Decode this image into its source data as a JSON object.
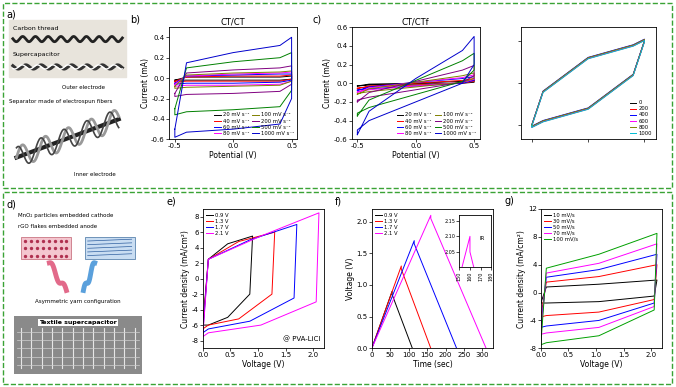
{
  "chart_data": [
    {
      "type": "line",
      "panel_label": "b)",
      "title": "CT/CT",
      "x_label": "Potential (V)",
      "y_label": "Current (mA)",
      "x": [
        -0.5,
        -0.4,
        0.0,
        0.4,
        0.5,
        0.5,
        0.4,
        0.0,
        -0.4,
        -0.5,
        -0.5
      ],
      "xlim": [
        -0.55,
        0.55
      ],
      "ylim": [
        -0.6,
        0.5
      ],
      "xticks": [
        -0.5,
        0.0,
        0.5
      ],
      "yticks": [
        -0.6,
        -0.4,
        -0.2,
        0.0,
        0.2,
        0.4
      ],
      "legend": "lower right",
      "series": [
        {
          "name": "20 mV s⁻¹",
          "color": "#000000",
          "values": [
            -0.02,
            0.01,
            0.01,
            0.01,
            0.02,
            -0.01,
            -0.02,
            -0.02,
            -0.02,
            -0.02,
            -0.02
          ]
        },
        {
          "name": "40 mV s⁻¹",
          "color": "#ff0000",
          "values": [
            -0.03,
            0.01,
            0.02,
            0.02,
            0.03,
            -0.01,
            -0.03,
            -0.03,
            -0.03,
            -0.04,
            -0.03
          ]
        },
        {
          "name": "60 mV s⁻¹",
          "color": "#0000ff",
          "values": [
            -0.05,
            0.02,
            0.03,
            0.04,
            0.04,
            -0.02,
            -0.04,
            -0.05,
            -0.05,
            -0.06,
            -0.05
          ]
        },
        {
          "name": "80 mV s⁻¹",
          "color": "#ff00ff",
          "values": [
            -0.06,
            0.02,
            0.04,
            0.05,
            0.06,
            -0.03,
            -0.06,
            -0.07,
            -0.07,
            -0.08,
            -0.06
          ]
        },
        {
          "name": "100 mV s⁻¹",
          "color": "#808000",
          "values": [
            -0.08,
            0.03,
            0.05,
            0.06,
            0.07,
            -0.03,
            -0.07,
            -0.08,
            -0.09,
            -0.1,
            -0.08
          ]
        },
        {
          "name": "200 mV s⁻¹",
          "color": "#800080",
          "values": [
            -0.15,
            0.05,
            0.08,
            0.1,
            0.12,
            -0.06,
            -0.13,
            -0.15,
            -0.16,
            -0.18,
            -0.15
          ]
        },
        {
          "name": "500 mV s⁻¹",
          "color": "#008000",
          "values": [
            -0.3,
            0.1,
            0.16,
            0.2,
            0.25,
            -0.12,
            -0.28,
            -0.31,
            -0.33,
            -0.36,
            -0.3
          ]
        },
        {
          "name": "1000 mV s⁻¹",
          "color": "#0000cc",
          "values": [
            -0.5,
            0.15,
            0.25,
            0.32,
            0.4,
            -0.2,
            -0.45,
            -0.5,
            -0.53,
            -0.58,
            -0.5
          ]
        }
      ]
    },
    {
      "type": "line",
      "panel_label": "c)",
      "title": "CT/CTf",
      "x_label": "Potential (V)",
      "y_label": "Current (mA)",
      "x": [
        -0.5,
        -0.4,
        0.0,
        0.4,
        0.5,
        0.5,
        0.4,
        0.0,
        -0.4,
        -0.5,
        -0.5
      ],
      "xlim": [
        -0.55,
        0.55
      ],
      "ylim": [
        -0.6,
        0.6
      ],
      "xticks": [
        -0.5,
        0.0,
        0.5
      ],
      "yticks": [
        -0.6,
        -0.4,
        -0.2,
        0.0,
        0.2,
        0.4,
        0.6
      ],
      "legend": "lower right",
      "series": [
        {
          "name": "20 mV s⁻¹",
          "color": "#000000",
          "values": [
            -0.03,
            -0.01,
            0.0,
            0.02,
            0.03,
            0.01,
            0.0,
            -0.01,
            -0.02,
            -0.03,
            -0.03
          ]
        },
        {
          "name": "40 mV s⁻¹",
          "color": "#ff0000",
          "values": [
            -0.06,
            -0.03,
            0.0,
            0.03,
            0.05,
            0.02,
            0.0,
            -0.02,
            -0.04,
            -0.05,
            -0.06
          ]
        },
        {
          "name": "60 mV s⁻¹",
          "color": "#0000ff",
          "values": [
            -0.08,
            -0.04,
            0.01,
            0.05,
            0.07,
            0.03,
            0.0,
            -0.03,
            -0.06,
            -0.07,
            -0.08
          ]
        },
        {
          "name": "80 mV s⁻¹",
          "color": "#ff00ff",
          "values": [
            -0.1,
            -0.05,
            0.01,
            0.06,
            0.09,
            0.04,
            0.01,
            -0.03,
            -0.07,
            -0.09,
            -0.1
          ]
        },
        {
          "name": "100 mV s⁻¹",
          "color": "#808000",
          "values": [
            -0.12,
            -0.06,
            0.01,
            0.08,
            0.11,
            0.05,
            0.01,
            -0.04,
            -0.09,
            -0.11,
            -0.12
          ]
        },
        {
          "name": "200 mV s⁻¹",
          "color": "#800080",
          "values": [
            -0.2,
            -0.1,
            0.02,
            0.14,
            0.19,
            0.08,
            0.01,
            -0.07,
            -0.15,
            -0.18,
            -0.2
          ]
        },
        {
          "name": "500 mV s⁻¹",
          "color": "#008000",
          "values": [
            -0.35,
            -0.18,
            0.03,
            0.24,
            0.32,
            0.14,
            0.02,
            -0.12,
            -0.26,
            -0.32,
            -0.35
          ]
        },
        {
          "name": "1000 mV s⁻¹",
          "color": "#0000cc",
          "values": [
            -0.55,
            -0.3,
            0.05,
            0.35,
            0.5,
            0.2,
            0.0,
            -0.2,
            -0.4,
            -0.5,
            -0.55
          ]
        }
      ]
    },
    {
      "type": "line",
      "tick_labels": false,
      "x": [
        -0.5,
        -0.4,
        0.0,
        0.4,
        0.5,
        0.5,
        0.4,
        0.0,
        -0.4,
        -0.5,
        -0.5
      ],
      "xlim": [
        -0.6,
        0.6
      ],
      "ylim": [
        -2.0,
        2.0
      ],
      "xticks": [
        -0.5,
        0.0,
        0.5
      ],
      "yticks": [
        -1.5,
        0.0,
        1.5
      ],
      "legend": "lower right",
      "series": [
        {
          "name": "0",
          "color": "#000000",
          "values": [
            -1.5,
            -0.3,
            0.9,
            1.35,
            1.55,
            1.5,
            0.3,
            -0.9,
            -1.35,
            -1.55,
            -1.5
          ]
        },
        {
          "name": "200",
          "color": "#ff0000",
          "values": [
            -1.52,
            -0.32,
            0.88,
            1.33,
            1.53,
            1.48,
            0.28,
            -0.92,
            -1.37,
            -1.57,
            -1.52
          ]
        },
        {
          "name": "400",
          "color": "#0000ff",
          "values": [
            -1.48,
            -0.28,
            0.92,
            1.37,
            1.57,
            1.52,
            0.32,
            -0.88,
            -1.33,
            -1.53,
            -1.48
          ]
        },
        {
          "name": "600",
          "color": "#ff00ff",
          "values": [
            -1.51,
            -0.31,
            0.89,
            1.34,
            1.54,
            1.49,
            0.29,
            -0.91,
            -1.36,
            -1.56,
            -1.51
          ]
        },
        {
          "name": "800",
          "color": "#808000",
          "values": [
            -1.49,
            -0.29,
            0.91,
            1.36,
            1.56,
            1.51,
            0.31,
            -0.89,
            -1.34,
            -1.54,
            -1.49
          ]
        },
        {
          "name": "1000",
          "color": "#00bcd4",
          "values": [
            -1.53,
            -0.33,
            0.87,
            1.32,
            1.52,
            1.47,
            0.27,
            -0.93,
            -1.38,
            -1.58,
            -1.53
          ]
        }
      ]
    },
    {
      "type": "line",
      "panel_label": "e)",
      "x_label": "Voltage (V)",
      "y_label": "Current density (mA/cm²)",
      "xlim": [
        0.0,
        2.2
      ],
      "ylim": [
        -9,
        9
      ],
      "xticks": [
        0.0,
        0.5,
        1.0,
        1.5,
        2.0
      ],
      "yticks": [
        -8,
        -6,
        -4,
        -2,
        0,
        2,
        4,
        6,
        8
      ],
      "legend": "upper left",
      "annotations": [
        "@ PVA-LiCl"
      ],
      "series": [
        {
          "name": "0.9 V",
          "color": "#000000",
          "x": [
            0.0,
            0.1,
            0.45,
            0.9,
            0.85,
            0.45,
            0.1,
            0.0
          ],
          "values": [
            -6.0,
            2.5,
            4.5,
            5.5,
            -2.0,
            -5.0,
            -6.0,
            -6.0
          ]
        },
        {
          "name": "1.3 V",
          "color": "#ff0000",
          "x": [
            0.0,
            0.1,
            0.65,
            1.3,
            1.25,
            0.65,
            0.1,
            0.0
          ],
          "values": [
            -6.5,
            2.5,
            4.8,
            6.0,
            -2.0,
            -5.2,
            -6.0,
            -6.5
          ]
        },
        {
          "name": "1.7 V",
          "color": "#0000ff",
          "x": [
            0.0,
            0.1,
            0.85,
            1.7,
            1.65,
            0.85,
            0.1,
            0.0
          ],
          "values": [
            -7.0,
            2.5,
            5.0,
            7.0,
            -2.5,
            -5.5,
            -6.5,
            -7.0
          ]
        },
        {
          "name": "2.1 V",
          "color": "#ff00ff",
          "x": [
            0.0,
            0.1,
            1.05,
            2.1,
            2.05,
            1.05,
            0.1,
            0.0
          ],
          "values": [
            -7.5,
            2.5,
            5.5,
            8.5,
            -3.0,
            -6.0,
            -7.0,
            -7.5
          ]
        }
      ]
    },
    {
      "type": "line",
      "panel_label": "f)",
      "x_label": "Time (sec)",
      "y_label": "Voltage (V)",
      "xlim": [
        0,
        330
      ],
      "ylim": [
        0.0,
        2.2
      ],
      "xticks": [
        0,
        50,
        100,
        150,
        200,
        250,
        300
      ],
      "yticks": [
        0.0,
        0.5,
        1.0,
        1.5,
        2.0
      ],
      "legend": "upper left",
      "series": [
        {
          "name": "0.9 V",
          "color": "#000000",
          "x": [
            0,
            55,
            55,
            110
          ],
          "values": [
            0.0,
            0.9,
            0.85,
            0.0
          ]
        },
        {
          "name": "1.3 V",
          "color": "#ff0000",
          "x": [
            0,
            80,
            80,
            160
          ],
          "values": [
            0.0,
            1.3,
            1.25,
            0.0
          ]
        },
        {
          "name": "1.7 V",
          "color": "#0000ff",
          "x": [
            0,
            115,
            115,
            230
          ],
          "values": [
            0.0,
            1.7,
            1.65,
            0.0
          ]
        },
        {
          "name": "2.1 V",
          "color": "#ff00ff",
          "x": [
            0,
            160,
            160,
            310
          ],
          "values": [
            0.0,
            2.1,
            2.05,
            0.0
          ]
        }
      ],
      "inset": {
        "xlim": [
          150,
          180
        ],
        "ylim": [
          2.0,
          2.17
        ],
        "xticks": [
          150,
          160,
          170,
          180
        ],
        "yticks": [
          2.05,
          {
            "value": 2.1,
            "label": "2.10"
          },
          2.15
        ],
        "annotations": [
          "IR"
        ]
      }
    },
    {
      "type": "line",
      "panel_label": "g)",
      "x_label": "Voltage (V)",
      "y_label": "Current density (mA/cm²)",
      "xlim": [
        0.0,
        2.2
      ],
      "ylim": [
        -8,
        12
      ],
      "xticks": [
        0.0,
        0.5,
        1.0,
        1.5,
        2.0
      ],
      "yticks": [
        -8,
        -4,
        0,
        4,
        8,
        12
      ],
      "legend": "upper left",
      "x": [
        0.0,
        0.1,
        1.05,
        2.1,
        2.05,
        1.05,
        0.1,
        0.0
      ],
      "series": [
        {
          "name": "10 mV/s",
          "color": "#000000",
          "values": [
            -1.5,
            0.8,
            1.2,
            1.8,
            -0.5,
            -1.3,
            -1.5,
            -1.5
          ]
        },
        {
          "name": "30 mV/s",
          "color": "#ff0000",
          "values": [
            -3.5,
            1.5,
            2.3,
            4.0,
            -1.0,
            -2.8,
            -3.3,
            -3.5
          ]
        },
        {
          "name": "50 mV/s",
          "color": "#0000ff",
          "values": [
            -5.0,
            2.2,
            3.3,
            5.5,
            -1.5,
            -4.0,
            -4.8,
            -5.0
          ]
        },
        {
          "name": "70 mV/s",
          "color": "#ff00ff",
          "values": [
            -6.0,
            2.8,
            4.2,
            7.0,
            -2.0,
            -5.0,
            -5.8,
            -6.0
          ]
        },
        {
          "name": "100 mV/s",
          "color": "#00a000",
          "values": [
            -7.5,
            3.5,
            5.5,
            8.5,
            -2.5,
            -6.2,
            -7.2,
            -7.5
          ]
        }
      ]
    }
  ],
  "diagrams": [
    {
      "panel_label": "a)",
      "texts": {
        "carbon_thread": "Carbon thread",
        "supercapacitor": "Supercapacitor",
        "outer_electrode": "Outer electrode",
        "separator": "Separator made of electrospun fibers",
        "inner_electrode": "Inner electrode"
      }
    },
    {
      "panel_label": "d)",
      "texts": {
        "cathode": "MnO₂ particles embedded cathode",
        "anode": "rGO flakes embedded anode",
        "configuration": "Asymmetric yarn configuration",
        "photo": "Textile supercapacitor"
      }
    }
  ]
}
